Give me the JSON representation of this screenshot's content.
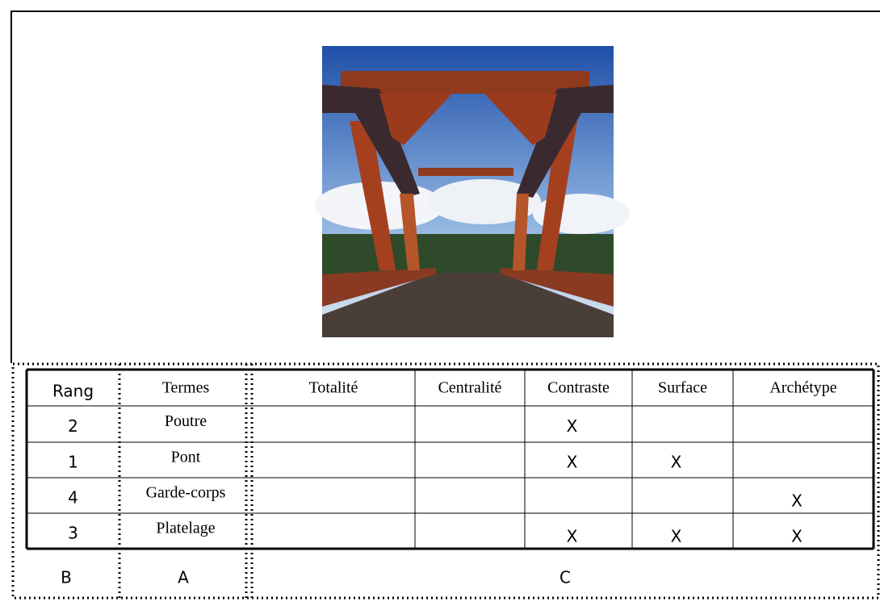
{
  "table": {
    "header": [
      "Rang",
      "Termes",
      "Totalité",
      "Centralité",
      "Contraste",
      "Surface",
      "Archétype"
    ],
    "rows": [
      {
        "rang": "2",
        "terme": "Poutre",
        "cells": [
          null,
          null,
          "X",
          null,
          null
        ]
      },
      {
        "rang": "1",
        "terme": "Pont",
        "cells": [
          null,
          null,
          "X",
          "X",
          null
        ]
      },
      {
        "rang": "4",
        "terme": "Garde-corps",
        "cells": [
          null,
          null,
          null,
          null,
          "X"
        ]
      },
      {
        "rang": "3",
        "terme": "Platelage",
        "cells": [
          null,
          null,
          "X",
          "X",
          "X"
        ]
      }
    ],
    "zones": [
      "B",
      "A",
      "C"
    ]
  }
}
